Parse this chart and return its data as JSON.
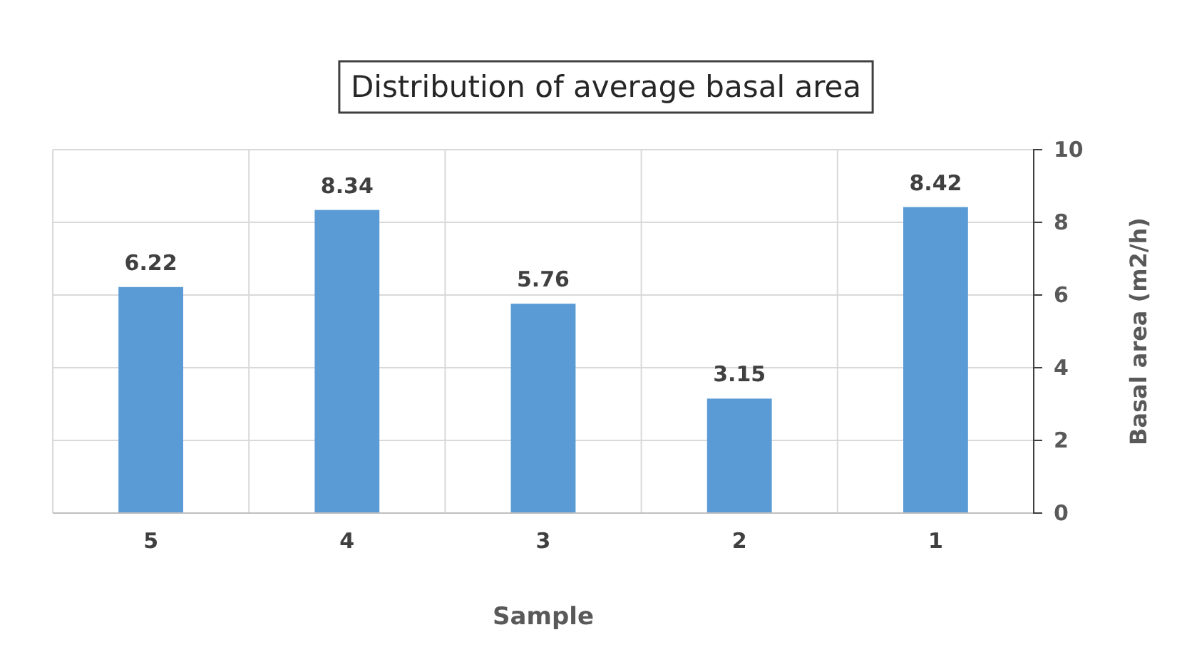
{
  "chart_data": {
    "type": "bar",
    "title": "Distribution of average basal area",
    "xlabel": "Sample",
    "ylabel": "Basal area (m2/h)",
    "categories": [
      "5",
      "4",
      "3",
      "2",
      "1"
    ],
    "values": [
      6.22,
      8.34,
      5.76,
      3.15,
      8.42
    ],
    "color": "#5b9bd5",
    "ylim": [
      0,
      10
    ],
    "yticks": [
      0,
      2,
      4,
      6,
      8,
      10
    ],
    "grid": true,
    "data_labels": true
  }
}
